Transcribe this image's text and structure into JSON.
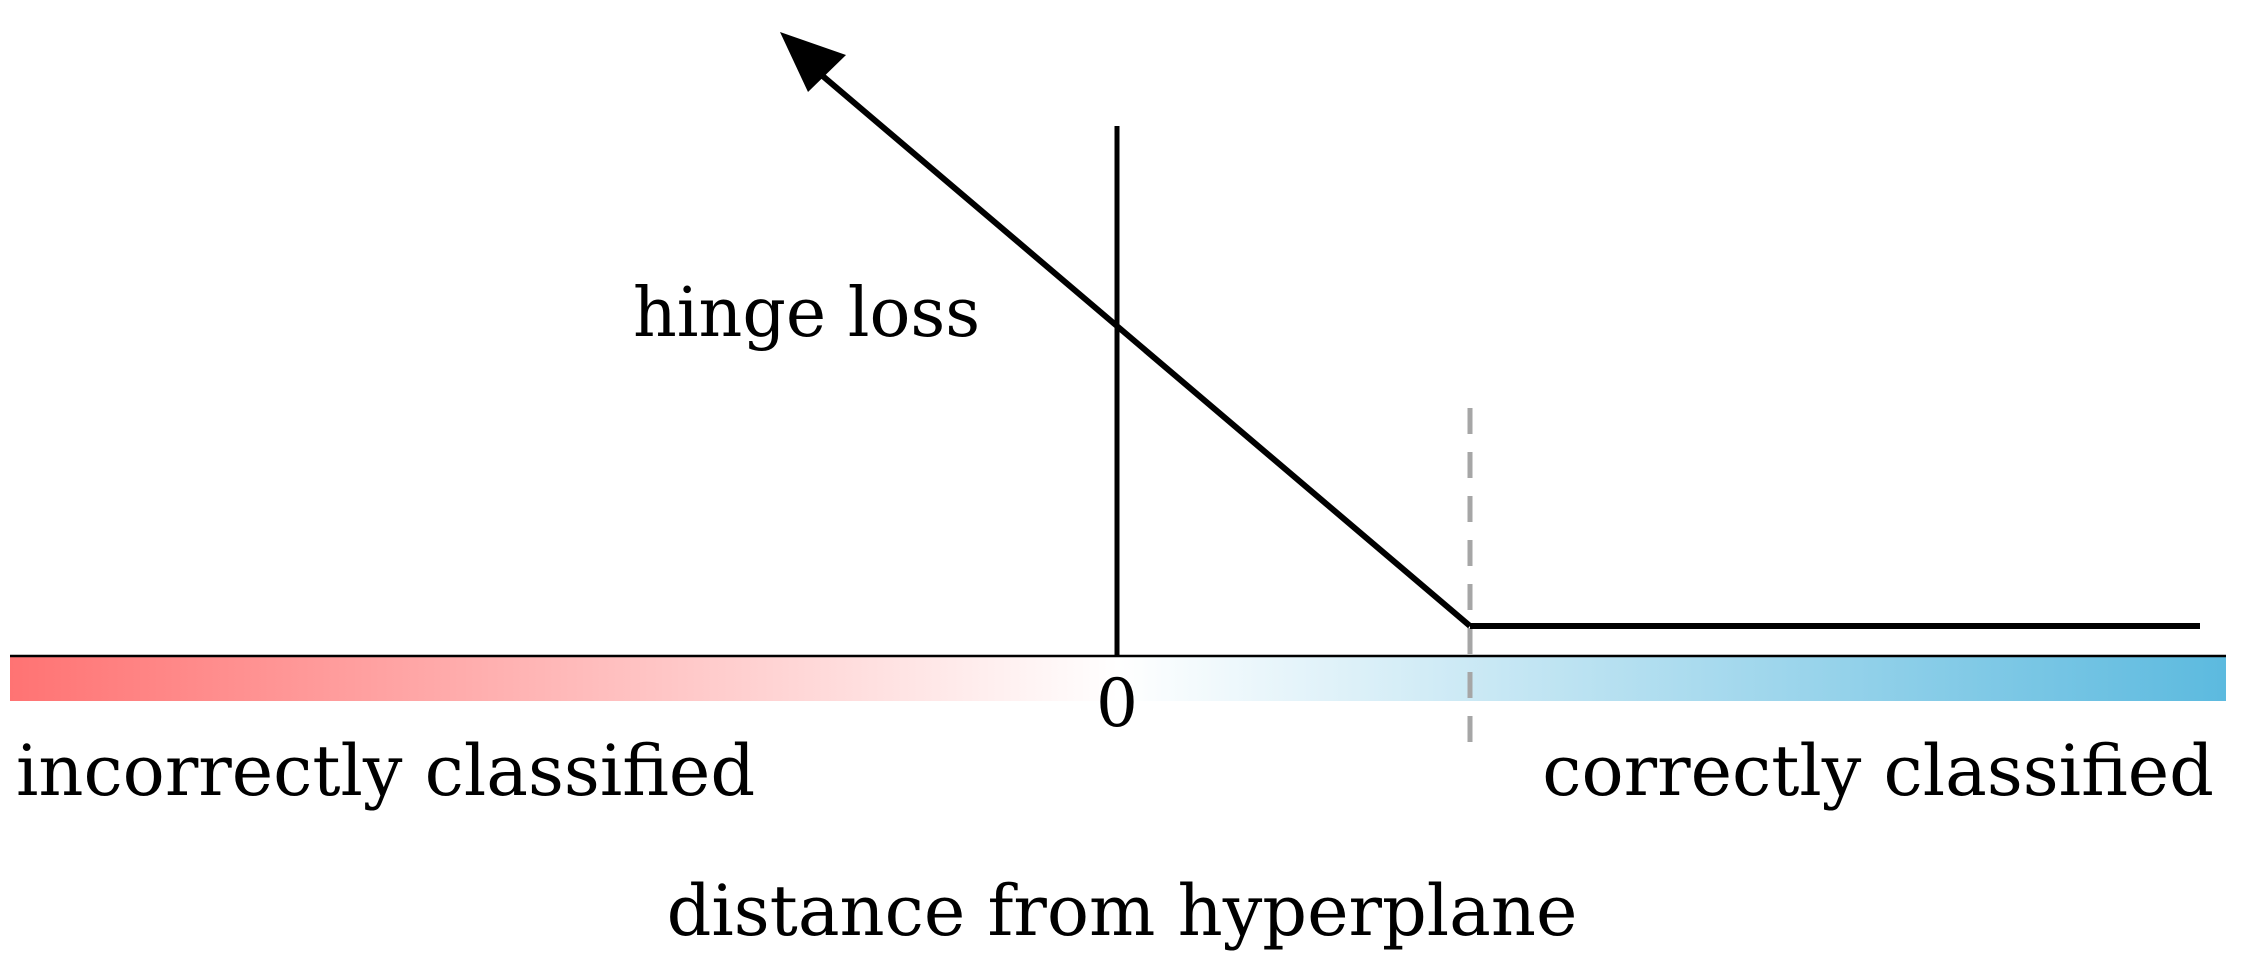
{
  "labels": {
    "hinge_loss": "hinge loss",
    "zero": "0",
    "incorrect": "incorrectly classified",
    "correct": "correctly classified",
    "axis": "distance from hyperplane"
  },
  "colors": {
    "incorrect_color": "#ff7373",
    "correct_color": "#5cbadf",
    "line_color": "#000000",
    "margin_line_color": "#a6a6a6"
  }
}
